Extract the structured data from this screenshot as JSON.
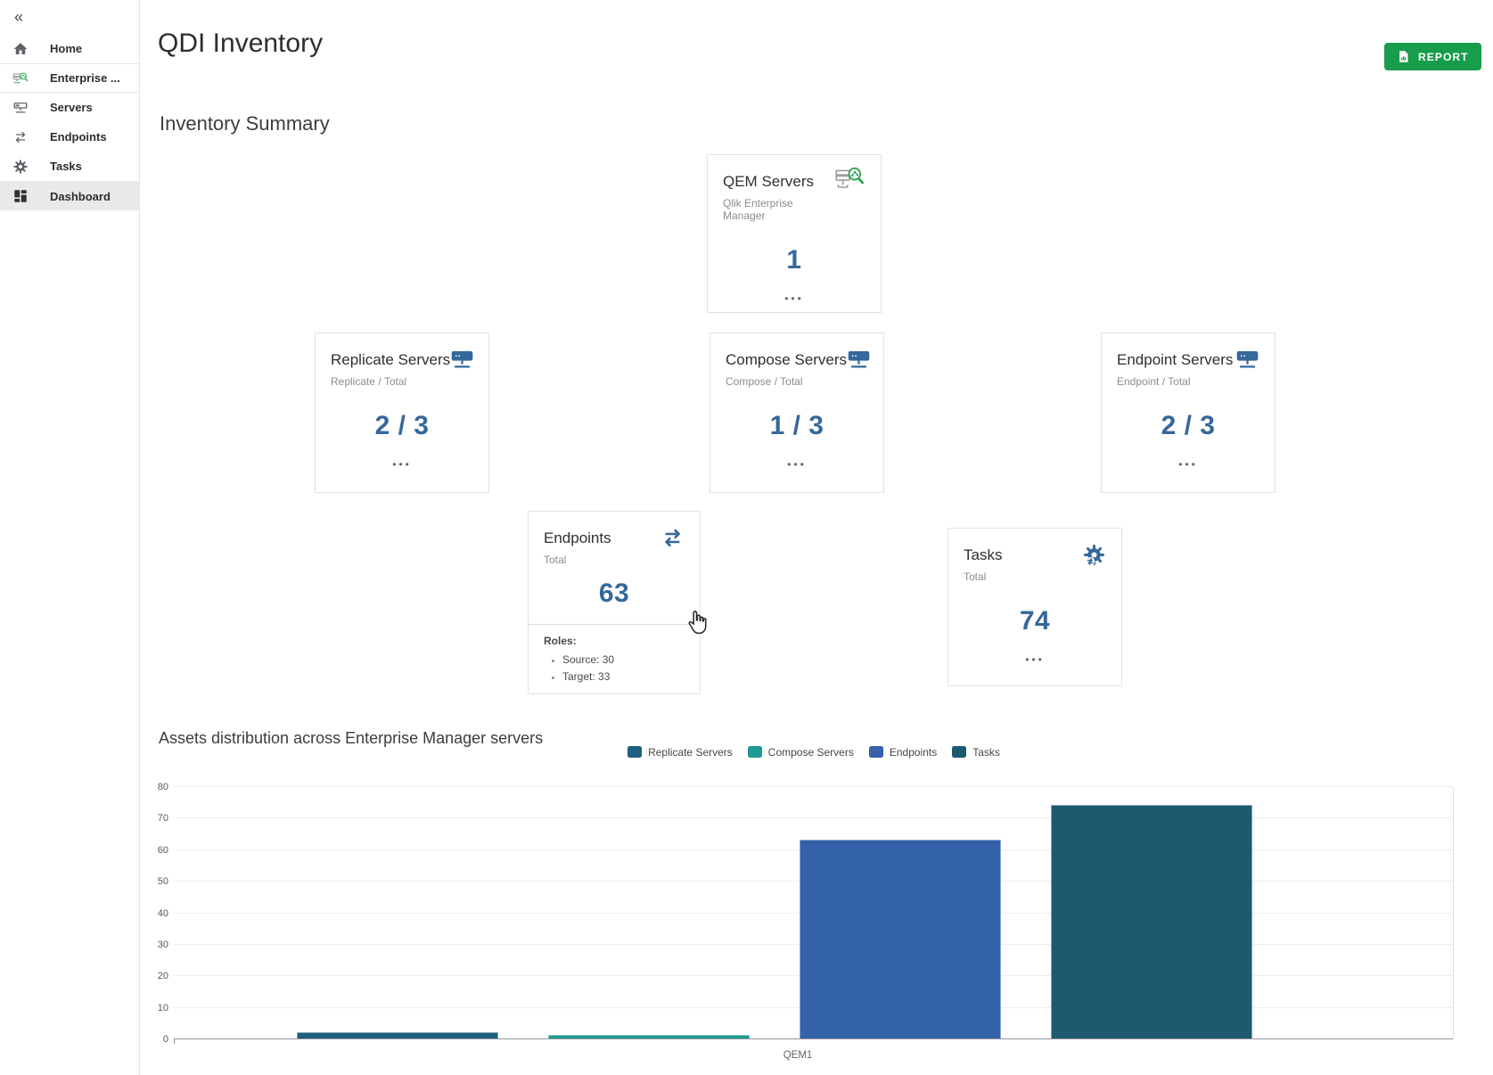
{
  "page_title": "QDI Inventory",
  "sidebar": {
    "collapse_glyph": "«",
    "items": [
      {
        "label": "Home",
        "icon": "home-icon",
        "selected": false
      },
      {
        "label": "Enterprise ...",
        "icon": "enterprise-manager-icon",
        "selected": false
      },
      {
        "label": "Servers",
        "icon": "servers-icon",
        "selected": false
      },
      {
        "label": "Endpoints",
        "icon": "endpoints-exchange-icon",
        "selected": false
      },
      {
        "label": "Tasks",
        "icon": "tasks-gear-icon",
        "selected": false
      },
      {
        "label": "Dashboard",
        "icon": "dashboard-grid-icon",
        "selected": true
      }
    ]
  },
  "header": {
    "title": "QDI Inventory",
    "report_button": {
      "label": "REPORT",
      "icon": "report-document-icon",
      "color": "#179d4b"
    }
  },
  "summary": {
    "section_title": "Inventory Summary",
    "value_color": "#35689b",
    "cards": [
      {
        "title": "QEM Servers",
        "subtitle": "Qlik Enterprise Manager",
        "value": "1",
        "icon": "qem-server-magnifier-icon",
        "more": "•••"
      },
      {
        "title": "Replicate Servers",
        "subtitle": "Replicate / Total",
        "value": "2 / 3",
        "icon": "server-icon",
        "more": "•••"
      },
      {
        "title": "Compose Servers",
        "subtitle": "Compose / Total",
        "value": "1 / 3",
        "icon": "server-icon",
        "more": "•••"
      },
      {
        "title": "Endpoint Servers",
        "subtitle": "Endpoint / Total",
        "value": "2 / 3",
        "icon": "server-icon",
        "more": "•••"
      },
      {
        "title": "Endpoints",
        "subtitle": "Total",
        "value": "63",
        "icon": "exchange-arrows-icon",
        "roles_label": "Roles:",
        "roles": [
          "Source: 30",
          "Target: 33"
        ]
      },
      {
        "title": "Tasks",
        "subtitle": "Total",
        "value": "74",
        "icon": "gear-sync-icon",
        "more": "•••"
      }
    ]
  },
  "chart_section": {
    "title": "Assets distribution across Enterprise Manager servers"
  },
  "chart_data": {
    "type": "bar",
    "title": "Assets distribution across Enterprise Manager servers",
    "categories": [
      "QEM1"
    ],
    "series": [
      {
        "name": "Replicate Servers",
        "values": [
          2
        ],
        "color": "#20607e"
      },
      {
        "name": "Compose Servers",
        "values": [
          1
        ],
        "color": "#1e9a94"
      },
      {
        "name": "Endpoints",
        "values": [
          63
        ],
        "color": "#3362a8"
      },
      {
        "name": "Tasks",
        "values": [
          74
        ],
        "color": "#1d5a70"
      }
    ],
    "xlabel": "",
    "ylabel": "",
    "ylim": [
      0,
      80
    ],
    "ytick_step": 10,
    "grid": true,
    "legend_position": "top-center"
  }
}
